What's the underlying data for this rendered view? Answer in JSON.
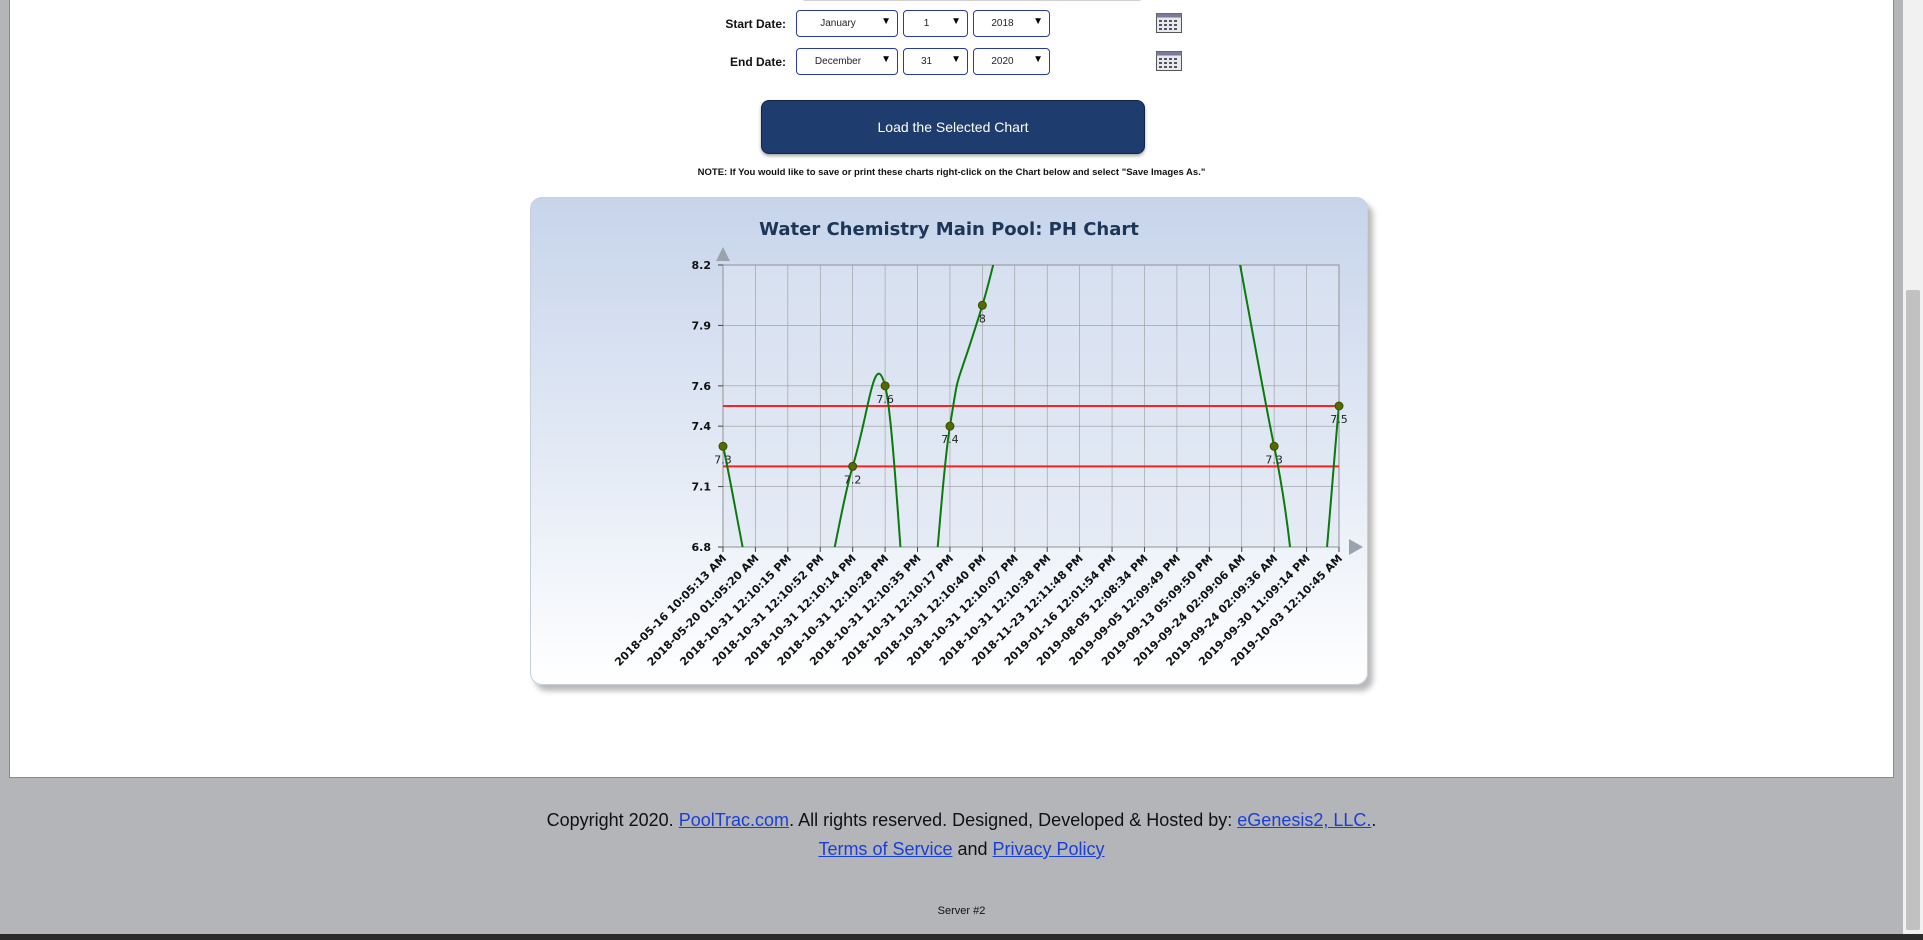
{
  "filters": {
    "start_label": "Start Date:",
    "start_month": "January",
    "start_day": "1",
    "start_year": "2018",
    "end_label": "End Date:",
    "end_month": "December",
    "end_day": "31",
    "end_year": "2020"
  },
  "load_button": "Load the Selected Chart",
  "note": "NOTE: If You would like to save or print these charts right-click on the Chart below and select \"Save Images As.\"",
  "chart_data": {
    "type": "line",
    "title": "Water Chemistry Main Pool: PH Chart",
    "x": [
      "2018-05-16 10:05:13 AM",
      "2018-05-20 01:05:20 AM",
      "2018-10-31 12:10:15 PM",
      "2018-10-31 12:10:52 PM",
      "2018-10-31 12:10:14 PM",
      "2018-10-31 12:10:28 PM",
      "2018-10-31 12:10:35 PM",
      "2018-10-31 12:10:17 PM",
      "2018-10-31 12:10:40 PM",
      "2018-10-31 12:10:07 PM",
      "2018-10-31 12:10:38 PM",
      "2018-11-23 12:11:48 PM",
      "2019-01-16 12:01:54 PM",
      "2019-08-05 12:08:34 PM",
      "2019-09-05 12:09:49 PM",
      "2019-09-13 05:09:50 PM",
      "2019-09-24 02:09:06 AM",
      "2019-09-24 02:09:36 AM",
      "2019-09-30 11:09:14 PM",
      "2019-10-03 12:10:45 AM"
    ],
    "points": [
      {
        "index": 0,
        "value": 7.3,
        "label": "7.3"
      },
      {
        "index": 4,
        "value": 7.2,
        "label": "7.2"
      },
      {
        "index": 5,
        "value": 7.6,
        "label": "7.6"
      },
      {
        "index": 7,
        "value": 7.4,
        "label": "7.4"
      },
      {
        "index": 8,
        "value": 8,
        "label": "8"
      },
      {
        "index": 17,
        "value": 7.3,
        "label": "7.3"
      },
      {
        "index": 19,
        "value": 7.5,
        "label": "7.5"
      }
    ],
    "y_ticks": [
      "6.8",
      "7.1",
      "7.4",
      "7.6",
      "7.9",
      "8.2"
    ],
    "ylim": [
      6.8,
      8.2
    ],
    "thresholds": [
      7.2,
      7.5
    ],
    "grid": true,
    "colors": {
      "line": "#0a7a0a",
      "point": "#556b00",
      "threshold": "#ff2020",
      "grid": "#999999"
    }
  },
  "footer": {
    "copyright_prefix": "Copyright 2020. ",
    "pooltrac_link": "PoolTrac.com",
    "rights_text": ". All rights reserved. Designed, Developed & Hosted by: ",
    "egenesis_link": "eGenesis2, LLC.",
    "period": ".",
    "terms_link": "Terms of Service",
    "and_text": " and ",
    "privacy_link": "Privacy Policy",
    "server": "Server #2"
  }
}
